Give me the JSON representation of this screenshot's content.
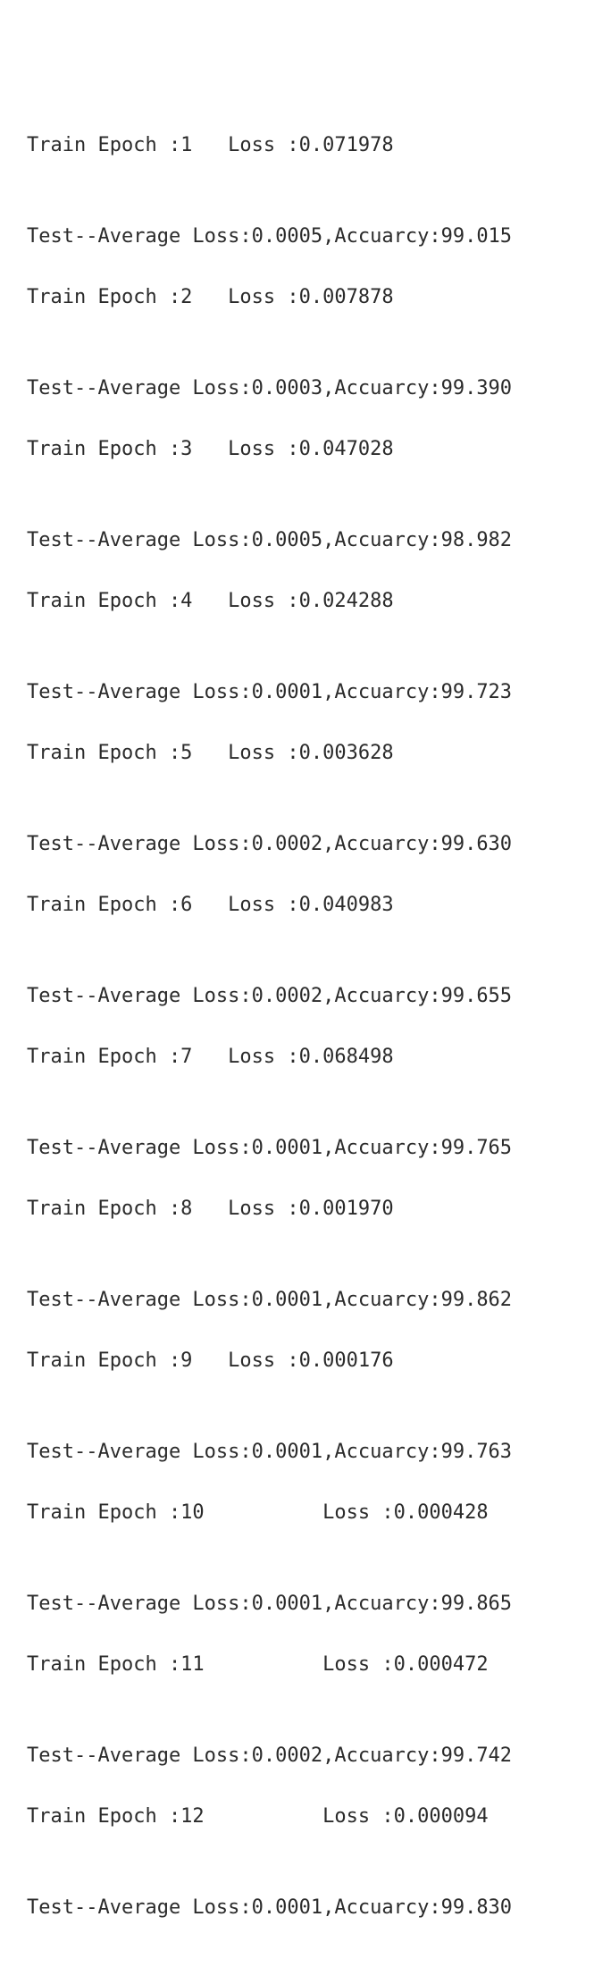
{
  "log": [
    {
      "train": "Train Epoch :1   Loss :0.071978",
      "test": "Test--Average Loss:0.0005,Accuarcy:99.015"
    },
    {
      "train": "Train Epoch :2   Loss :0.007878",
      "test": "Test--Average Loss:0.0003,Accuarcy:99.390"
    },
    {
      "train": "Train Epoch :3   Loss :0.047028",
      "test": "Test--Average Loss:0.0005,Accuarcy:98.982"
    },
    {
      "train": "Train Epoch :4   Loss :0.024288",
      "test": "Test--Average Loss:0.0001,Accuarcy:99.723"
    },
    {
      "train": "Train Epoch :5   Loss :0.003628",
      "test": "Test--Average Loss:0.0002,Accuarcy:99.630"
    },
    {
      "train": "Train Epoch :6   Loss :0.040983",
      "test": "Test--Average Loss:0.0002,Accuarcy:99.655"
    },
    {
      "train": "Train Epoch :7   Loss :0.068498",
      "test": "Test--Average Loss:0.0001,Accuarcy:99.765"
    },
    {
      "train": "Train Epoch :8   Loss :0.001970",
      "test": "Test--Average Loss:0.0001,Accuarcy:99.862"
    },
    {
      "train": "Train Epoch :9   Loss :0.000176",
      "test": "Test--Average Loss:0.0001,Accuarcy:99.763"
    },
    {
      "train": "Train Epoch :10          Loss :0.000428",
      "test": "Test--Average Loss:0.0001,Accuarcy:99.865"
    },
    {
      "train": "Train Epoch :11          Loss :0.000472",
      "test": "Test--Average Loss:0.0002,Accuarcy:99.742"
    },
    {
      "train": "Train Epoch :12          Loss :0.000094",
      "test": "Test--Average Loss:0.0001,Accuarcy:99.830"
    }
  ]
}
